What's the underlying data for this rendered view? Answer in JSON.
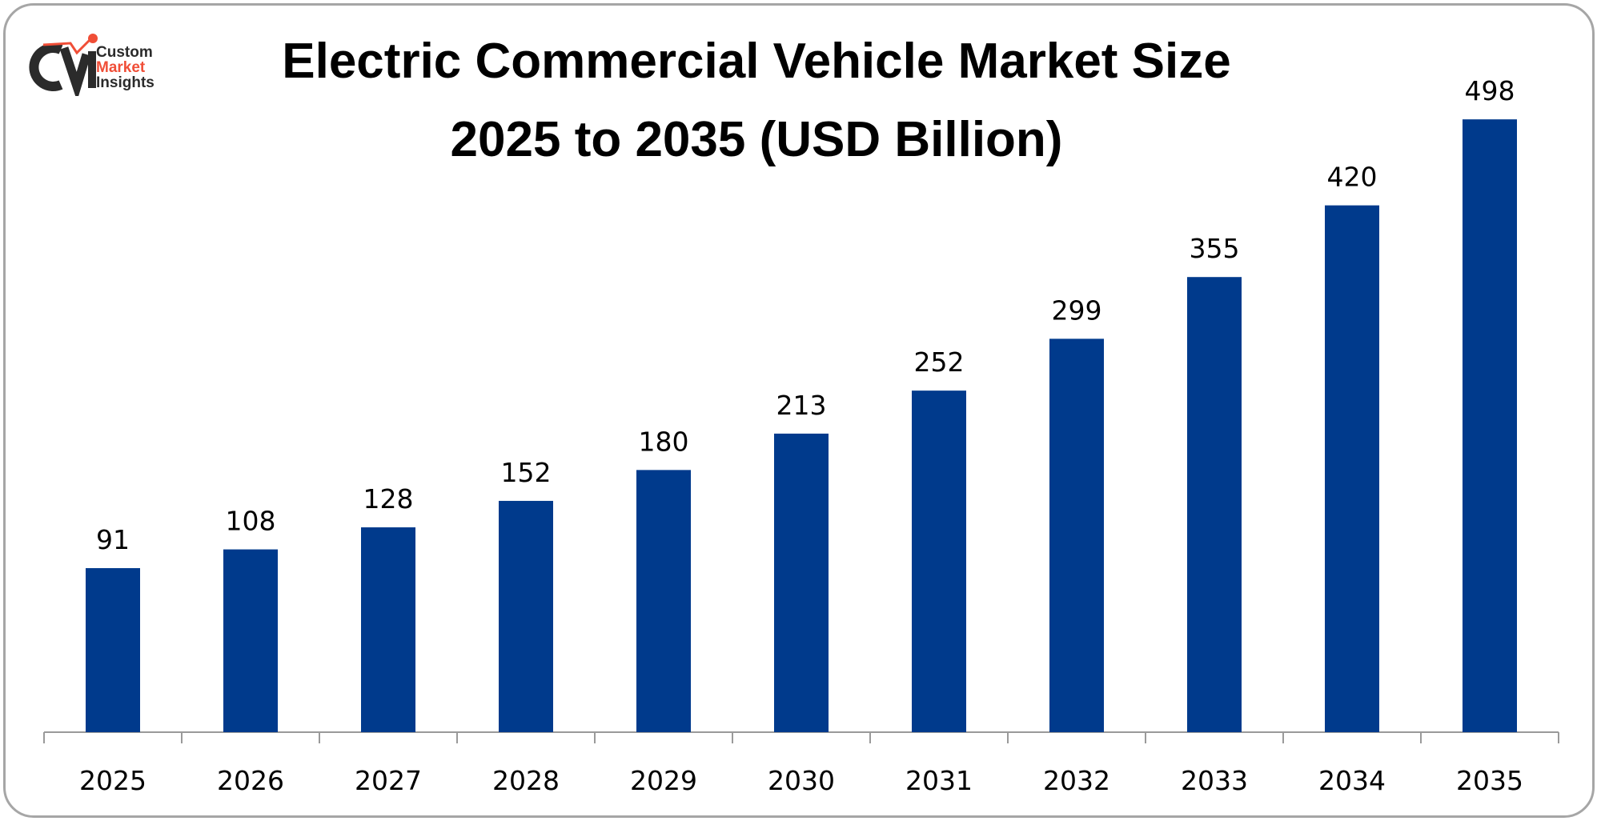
{
  "logo": {
    "line1": "Custom",
    "line2": "Market",
    "line3": "Insights",
    "mark": "CMI",
    "accent": "#f04e37"
  },
  "chart_data": {
    "type": "bar",
    "title": "Electric Commercial Vehicle Market Size 2025 to 2035 (USD Billion)",
    "title_lines": [
      "Electric Commercial Vehicle Market Size",
      "2025 to 2035 (USD Billion)"
    ],
    "categories": [
      "2025",
      "2026",
      "2027",
      "2028",
      "2029",
      "2030",
      "2031",
      "2032",
      "2033",
      "2034",
      "2035"
    ],
    "values": [
      91,
      108,
      128,
      152,
      180,
      213,
      252,
      299,
      355,
      420,
      498
    ],
    "bar_color": "#003a8c",
    "xlabel": "",
    "ylabel": "",
    "grid": false,
    "data_labels": true
  }
}
